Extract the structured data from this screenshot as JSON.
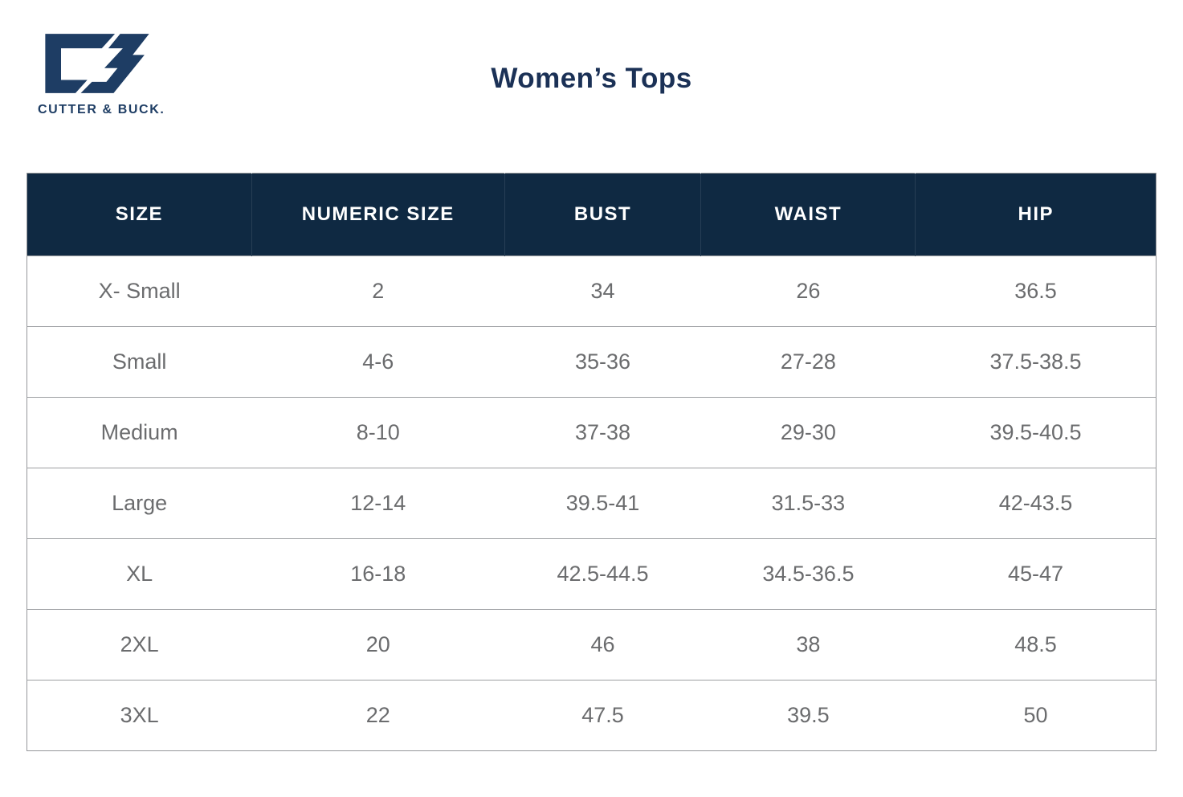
{
  "theme": {
    "header_bg": "#0f2942",
    "header_text": "#ffffff",
    "body_text": "#6b6c6e",
    "row_border": "#9d9fa2",
    "brand_navy": "#1e3d64",
    "title_color": "#1b3156",
    "background": "#ffffff"
  },
  "brand": {
    "logo_icon": "cutter-buck-cb-monogram",
    "wordmark": "CUTTER & BUCK."
  },
  "header": {
    "title": "Women’s Tops"
  },
  "table": {
    "columns": [
      "SIZE",
      "NUMERIC SIZE",
      "BUST",
      "WAIST",
      "HIP"
    ],
    "rows": [
      [
        "X- Small",
        "2",
        "34",
        "26",
        "36.5"
      ],
      [
        "Small",
        "4-6",
        "35-36",
        "27-28",
        "37.5-38.5"
      ],
      [
        "Medium",
        "8-10",
        "37-38",
        "29-30",
        "39.5-40.5"
      ],
      [
        "Large",
        "12-14",
        "39.5-41",
        "31.5-33",
        "42-43.5"
      ],
      [
        "XL",
        "16-18",
        "42.5-44.5",
        "34.5-36.5",
        "45-47"
      ],
      [
        "2XL",
        "20",
        "46",
        "38",
        "48.5"
      ],
      [
        "3XL",
        "22",
        "47.5",
        "39.5",
        "50"
      ]
    ]
  }
}
